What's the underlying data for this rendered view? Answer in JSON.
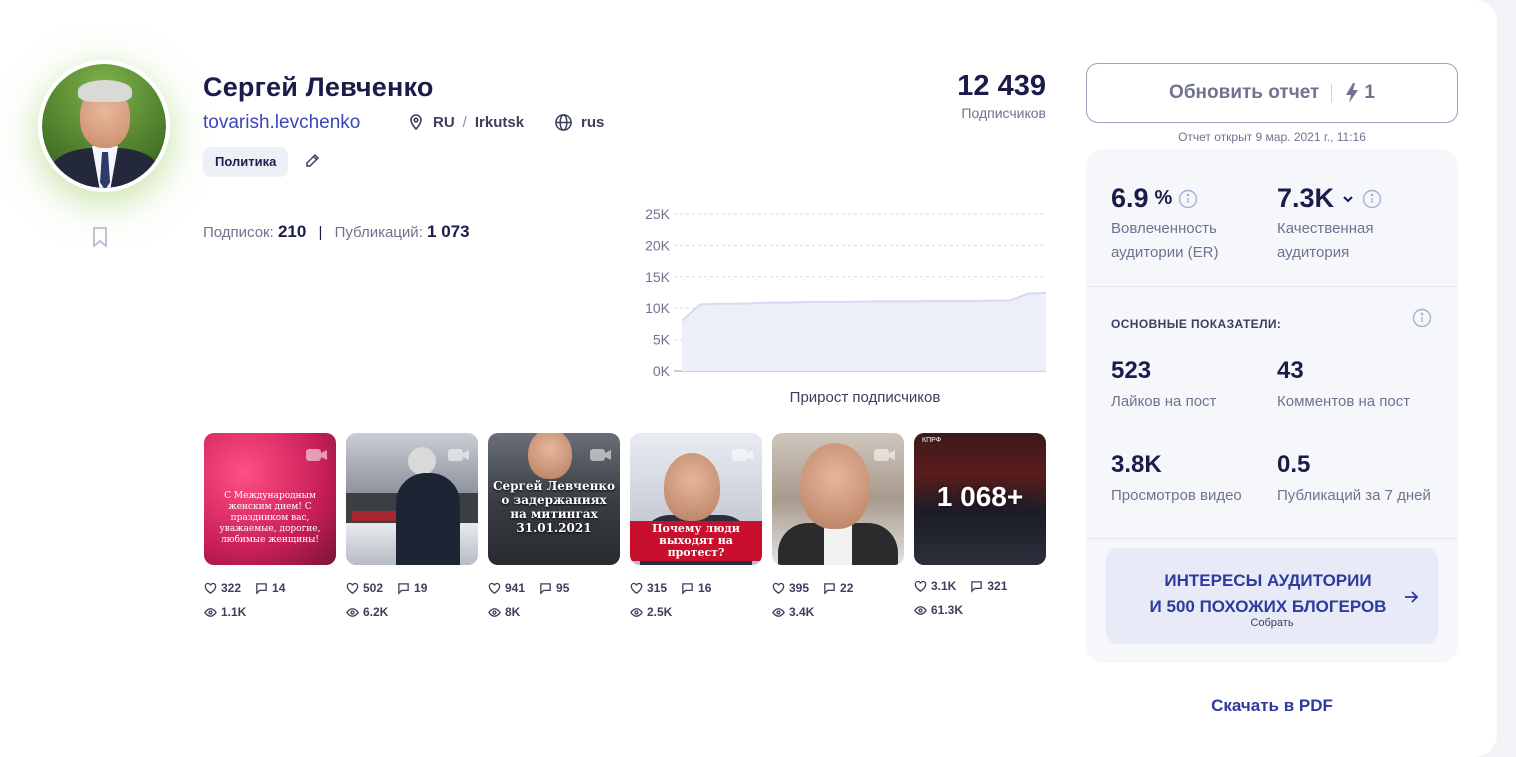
{
  "profile": {
    "name": "Сергей Левченко",
    "handle": "tovarish.levchenko",
    "country": "RU",
    "city": "Irkutsk",
    "language": "rus",
    "category_tag": "Политика",
    "following_label": "Подписок:",
    "following_value": "210",
    "posts_label": "Публикаций:",
    "posts_value": "1 073",
    "followers_value": "12 439",
    "followers_label": "Подписчиков"
  },
  "chart_data": {
    "type": "area",
    "title": "Прирост подписчиков",
    "y_ticks": [
      "0K",
      "5K",
      "10K",
      "15K",
      "20K",
      "25K"
    ],
    "ylim": [
      0,
      25000
    ],
    "grid": true,
    "x": [
      0,
      1,
      2,
      3,
      4,
      5,
      6,
      7,
      8,
      9,
      10,
      11,
      12,
      13,
      14,
      15,
      16,
      17,
      18,
      19,
      20
    ],
    "values": [
      8000,
      10600,
      10700,
      10700,
      10800,
      10900,
      10900,
      11000,
      11000,
      11000,
      11050,
      11100,
      11100,
      11100,
      11150,
      11150,
      11150,
      11200,
      11200,
      12300,
      12439
    ]
  },
  "posts": [
    {
      "text": "С Международным женским днем! С праздником вас, уважаемые, дорогие, любимые женщины!",
      "likes": "322",
      "comments": "14",
      "views": "1.1K"
    },
    {
      "text": "",
      "likes": "502",
      "comments": "19",
      "views": "6.2K"
    },
    {
      "text": "Сергей Левченко о задержаниях на митингах 31.01.2021",
      "likes": "941",
      "comments": "95",
      "views": "8K"
    },
    {
      "text": "Почему люди выходят на протест?",
      "likes": "315",
      "comments": "16",
      "views": "2.5K"
    },
    {
      "text": "",
      "likes": "395",
      "comments": "22",
      "views": "3.4K"
    },
    {
      "text": "1 068+",
      "banner": "КПРФ",
      "likes": "3.1K",
      "comments": "321",
      "views": "61.3K"
    }
  ],
  "report": {
    "refresh_label": "Обновить отчет",
    "credits": "1",
    "opened_at": "Отчет открыт 9 мар. 2021 г., 11:16"
  },
  "metrics": {
    "er_value": "6.9",
    "er_unit": "%",
    "er_label": "Вовлеченность аудитории (ER)",
    "quality_value": "7.3K",
    "quality_label": "Качественная аудитория",
    "section_title": "ОСНОВНЫЕ ПОКАЗАТЕЛИ:",
    "likes_per_post": "523",
    "likes_per_post_label": "Лайков на пост",
    "comments_per_post": "43",
    "comments_per_post_label": "Комментов на пост",
    "video_views": "3.8K",
    "video_views_label": "Просмотров видео",
    "posts_7d": "0.5",
    "posts_7d_label": "Публикаций за 7 дней"
  },
  "interests": {
    "line1": "ИНТЕРЕСЫ АУДИТОРИИ",
    "line2": "И 500 ПОХОЖИХ БЛОГЕРОВ",
    "sub": "Собрать"
  },
  "pdf_label": "Скачать в PDF",
  "colors": {
    "accent": "#2d3a9e",
    "text_primary": "#1a1c4a",
    "text_secondary": "#6f7390",
    "chart_fill": "#eceef8",
    "chart_line": "#d7daf0"
  }
}
